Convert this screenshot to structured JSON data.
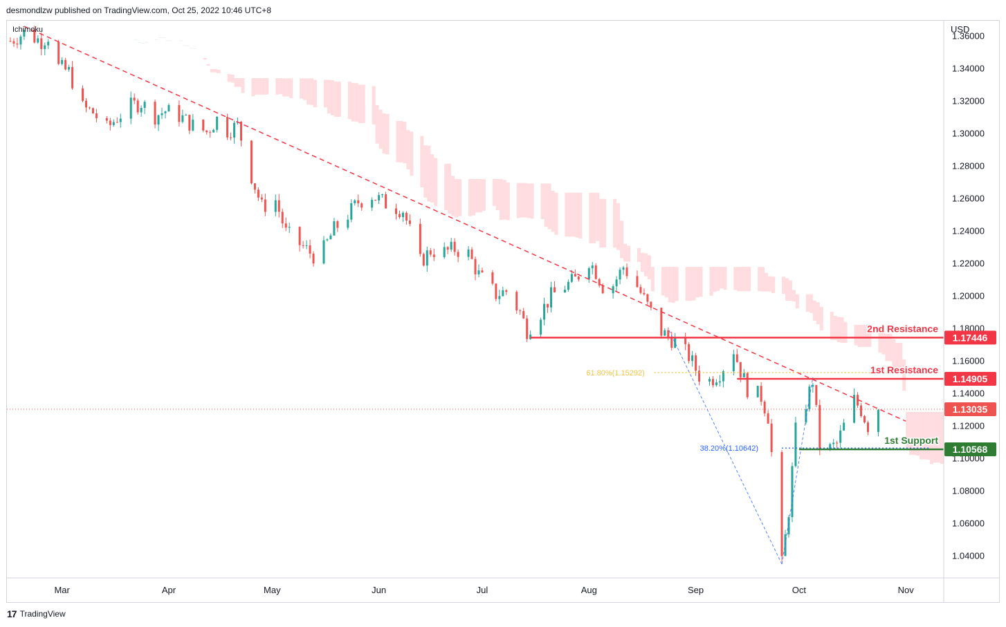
{
  "header": {
    "published_line": "desmondlzw published on TradingView.com, Oct 25, 2022 10:46 UTC+8"
  },
  "footer": {
    "brand": "TradingView"
  },
  "chart_data": {
    "type": "candlestick",
    "indicator": "Ichimoku",
    "currency": "USD",
    "y_axis": {
      "ticks": [
        1.36,
        1.34,
        1.32,
        1.3,
        1.28,
        1.26,
        1.24,
        1.22,
        1.2,
        1.18,
        1.16,
        1.14,
        1.12,
        1.1,
        1.08,
        1.06,
        1.04
      ],
      "tick_labels": [
        "1.36000",
        "1.34000",
        "1.32000",
        "1.30000",
        "1.28000",
        "1.26000",
        "1.24000",
        "1.22000",
        "1.20000",
        "1.18000",
        "1.16000",
        "1.14000",
        "1.12000",
        "1.10000",
        "1.08000",
        "1.06000",
        "1.04000"
      ],
      "range": [
        1.0265,
        1.3695
      ]
    },
    "x_axis": {
      "labels": [
        "Mar",
        "Apr",
        "May",
        "Jun",
        "Jul",
        "Aug",
        "Sep",
        "Oct",
        "Nov"
      ],
      "range": [
        "2022-02-13",
        "2022-11-12"
      ]
    },
    "price_path": [
      [
        "2022-02-14",
        1.357
      ],
      [
        "2022-02-18",
        1.362
      ],
      [
        "2022-02-23",
        1.357
      ],
      [
        "2022-02-25",
        1.36
      ],
      [
        "2022-02-28",
        1.341
      ],
      [
        "2022-03-03",
        1.338
      ],
      [
        "2022-03-07",
        1.316
      ],
      [
        "2022-03-10",
        1.313
      ],
      [
        "2022-03-14",
        1.303
      ],
      [
        "2022-03-17",
        1.31
      ],
      [
        "2022-03-21",
        1.317
      ],
      [
        "2022-03-24",
        1.319
      ],
      [
        "2022-03-28",
        1.311
      ],
      [
        "2022-03-31",
        1.314
      ],
      [
        "2022-04-04",
        1.311
      ],
      [
        "2022-04-08",
        1.305
      ],
      [
        "2022-04-12",
        1.301
      ],
      [
        "2022-04-15",
        1.309
      ],
      [
        "2022-04-18",
        1.302
      ],
      [
        "2022-04-21",
        1.305
      ],
      [
        "2022-04-25",
        1.274
      ],
      [
        "2022-04-28",
        1.255
      ],
      [
        "2022-05-02",
        1.259
      ],
      [
        "2022-05-05",
        1.239
      ],
      [
        "2022-05-09",
        1.232
      ],
      [
        "2022-05-13",
        1.225
      ],
      [
        "2022-05-16",
        1.229
      ],
      [
        "2022-05-19",
        1.241
      ],
      [
        "2022-05-23",
        1.25
      ],
      [
        "2022-05-26",
        1.258
      ],
      [
        "2022-05-30",
        1.262
      ],
      [
        "2022-06-03",
        1.257
      ],
      [
        "2022-06-08",
        1.253
      ],
      [
        "2022-06-13",
        1.221
      ],
      [
        "2022-06-16",
        1.228
      ],
      [
        "2022-06-20",
        1.227
      ],
      [
        "2022-06-23",
        1.229
      ],
      [
        "2022-06-27",
        1.226
      ],
      [
        "2022-06-30",
        1.213
      ],
      [
        "2022-07-05",
        1.201
      ],
      [
        "2022-07-08",
        1.203
      ],
      [
        "2022-07-12",
        1.19
      ],
      [
        "2022-07-14",
        1.179
      ],
      [
        "2022-07-18",
        1.19
      ],
      [
        "2022-07-21",
        1.2
      ],
      [
        "2022-07-25",
        1.206
      ],
      [
        "2022-07-28",
        1.21
      ],
      [
        "2022-08-01",
        1.222
      ],
      [
        "2022-08-03",
        1.215
      ],
      [
        "2022-08-05",
        1.206
      ],
      [
        "2022-08-08",
        1.207
      ],
      [
        "2022-08-11",
        1.218
      ],
      [
        "2022-08-15",
        1.206
      ],
      [
        "2022-08-18",
        1.194
      ],
      [
        "2022-08-22",
        1.178
      ],
      [
        "2022-08-26",
        1.172
      ],
      [
        "2022-08-30",
        1.163
      ],
      [
        "2022-09-02",
        1.151
      ],
      [
        "2022-09-05",
        1.148
      ],
      [
        "2022-09-08",
        1.153
      ],
      [
        "2022-09-12",
        1.167
      ],
      [
        "2022-09-14",
        1.154
      ],
      [
        "2022-09-16",
        1.143
      ],
      [
        "2022-09-20",
        1.138
      ],
      [
        "2022-09-22",
        1.126
      ],
      [
        "2022-09-26",
        1.035
      ],
      [
        "2022-09-28",
        1.068
      ],
      [
        "2022-09-30",
        1.117
      ],
      [
        "2022-10-03",
        1.134
      ],
      [
        "2022-10-05",
        1.148
      ],
      [
        "2022-10-07",
        1.108
      ],
      [
        "2022-10-10",
        1.106
      ],
      [
        "2022-10-12",
        1.109
      ],
      [
        "2022-10-14",
        1.12
      ],
      [
        "2022-10-17",
        1.136
      ],
      [
        "2022-10-19",
        1.13
      ],
      [
        "2022-10-21",
        1.12
      ],
      [
        "2022-10-24",
        1.13
      ]
    ],
    "trendline": {
      "from": [
        "2022-02-18",
        1.366
      ],
      "to": [
        "2022-11-01",
        1.123
      ],
      "color": "#f23645",
      "style": "dashed"
    },
    "fib_line": {
      "from": [
        "2022-09-26",
        1.035
      ],
      "to": [
        "2022-08-24",
        1.18
      ],
      "color": "#2962ff",
      "style": "dashed"
    },
    "fib_line_2": {
      "from": [
        "2022-09-26",
        1.035
      ],
      "to": [
        "2022-10-05",
        1.15
      ],
      "color": "#2962ff",
      "style": "dashed"
    },
    "fib_levels": [
      {
        "label": "61.80%(1.15292)",
        "value": 1.15292,
        "from": "2022-08-24",
        "to": "2022-10-05",
        "color": "#f5c242"
      },
      {
        "label": "38.20%(1.10642)",
        "value": 1.10642,
        "from": "2022-09-26",
        "to": "2022-10-05",
        "color": "#2962ff"
      }
    ],
    "levels": [
      {
        "name": "2nd Resistance",
        "value": 1.17446,
        "label": "1.17446",
        "from": "2022-07-15",
        "color": "#f23645",
        "text_color": "#f23645"
      },
      {
        "name": "1st Resistance",
        "value": 1.14905,
        "label": "1.14905",
        "from": "2022-09-13",
        "color": "#f23645",
        "text_color": "#f23645"
      },
      {
        "name": "1st Support",
        "value": 1.10568,
        "label": "1.10568",
        "from": "2022-10-01",
        "color": "#2e7d32",
        "text_color": "#2e7d32"
      }
    ],
    "current_price": {
      "value": 1.13035,
      "label": "1.13035",
      "color": "#ef5350"
    },
    "colors": {
      "up": "#26a69a",
      "down": "#ef5350",
      "cloud_bear": "#ffcdd2",
      "cloud_bull": "#c8e6c9",
      "grid": "#f0f3fa"
    }
  }
}
